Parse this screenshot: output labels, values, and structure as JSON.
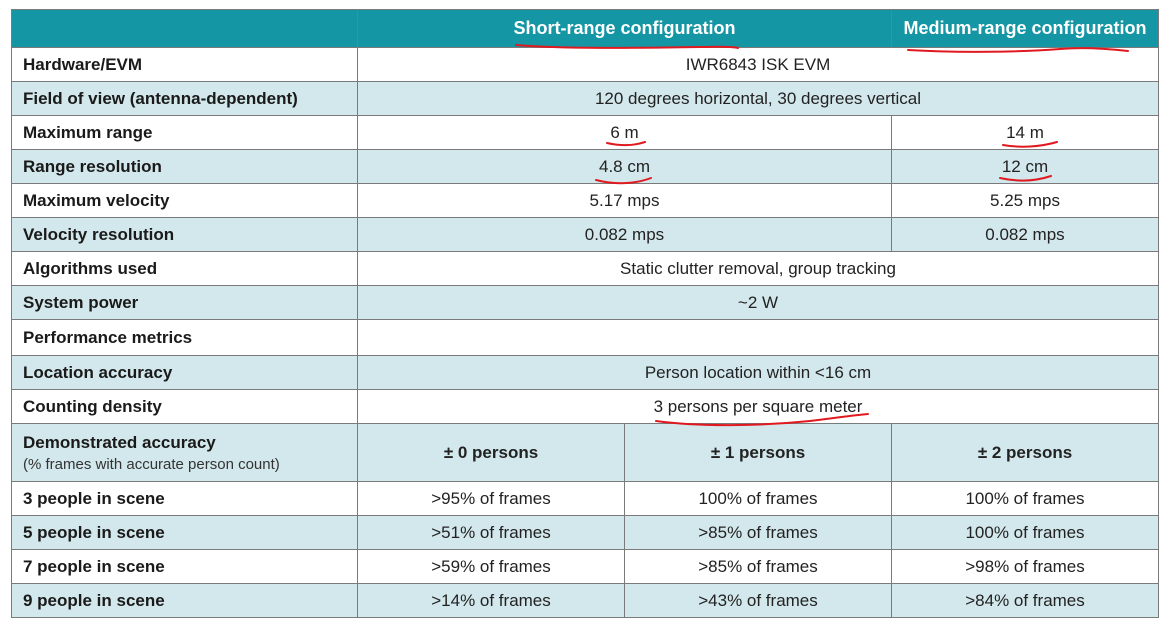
{
  "header": {
    "col_short": "Short-range configuration",
    "col_medium": "Medium-range configuration"
  },
  "rows": {
    "hardware": {
      "label": "Hardware/EVM",
      "value": "IWR6843 ISK EVM"
    },
    "fov": {
      "label": "Field of view (antenna-dependent)",
      "value": "120 degrees horizontal, 30 degrees vertical"
    },
    "max_range": {
      "label": "Maximum range",
      "short": "6 m",
      "medium": "14 m"
    },
    "range_res": {
      "label": "Range resolution",
      "short": "4.8 cm",
      "medium": "12 cm"
    },
    "max_vel": {
      "label": "Maximum velocity",
      "short": "5.17 mps",
      "medium": "5.25 mps"
    },
    "vel_res": {
      "label": "Velocity resolution",
      "short": "0.082 mps",
      "medium": "0.082 mps"
    },
    "algorithms": {
      "label": "Algorithms used",
      "value": "Static clutter removal, group tracking"
    },
    "power": {
      "label": "System power",
      "value": "~2 W"
    },
    "perf": {
      "label": "Performance metrics"
    },
    "location": {
      "label": "Location accuracy",
      "value": "Person location within <16 cm"
    },
    "density": {
      "label": "Counting density",
      "value": "3 persons per square meter"
    }
  },
  "accuracy": {
    "label": "Demonstrated accuracy",
    "sublabel": "(% frames with accurate person count)",
    "columns": [
      "± 0 persons",
      "± 1 persons",
      "± 2 persons"
    ],
    "rows": [
      {
        "label": "3 people in scene",
        "values": [
          ">95% of frames",
          "100% of frames",
          "100% of frames"
        ]
      },
      {
        "label": "5 people in scene",
        "values": [
          ">51% of frames",
          ">85% of frames",
          "100% of frames"
        ]
      },
      {
        "label": "7 people in scene",
        "values": [
          ">59% of frames",
          ">85% of frames",
          ">98% of frames"
        ]
      },
      {
        "label": "9 people in scene",
        "values": [
          ">14% of frames",
          ">43% of frames",
          ">84% of frames"
        ]
      }
    ]
  },
  "colors": {
    "header_bg": "#1596a4",
    "row_tint": "#d3e8ec",
    "annotation": "#e0191f"
  }
}
